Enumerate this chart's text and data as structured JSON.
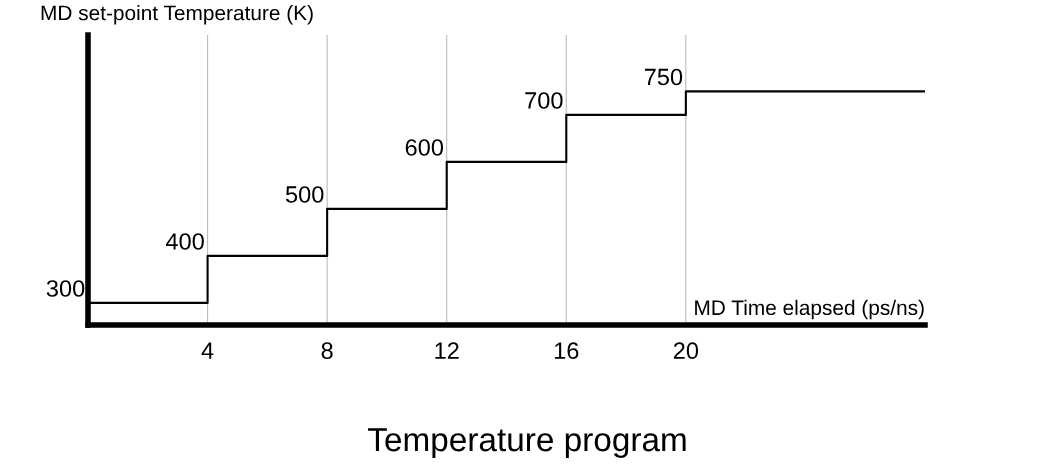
{
  "chart_data": {
    "type": "step",
    "title": "Temperature program",
    "xlabel": "MD Time elapsed (ps/ns)",
    "ylabel": "MD set-point Temperature (K)",
    "x": [
      0,
      4,
      8,
      12,
      16,
      20,
      28
    ],
    "values": [
      300,
      400,
      500,
      600,
      700,
      750,
      750
    ],
    "value_labels": [
      "300",
      "400",
      "500",
      "600",
      "700",
      "750",
      null
    ],
    "color": "#000000",
    "xlim": [
      0,
      28
    ],
    "xticks": [
      4,
      8,
      12,
      16,
      20
    ],
    "ylim": [
      253,
      870
    ],
    "grid": "x",
    "tick_labels": "x"
  }
}
